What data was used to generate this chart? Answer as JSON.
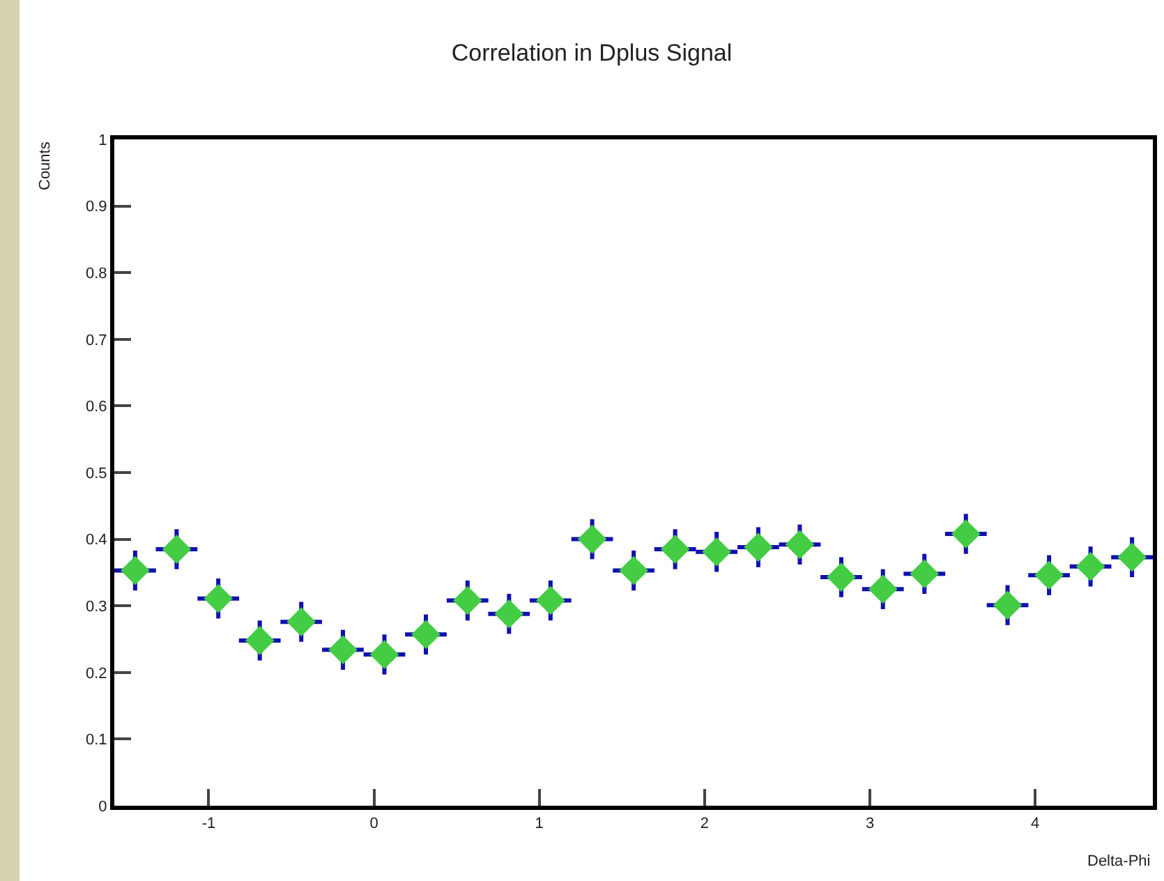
{
  "chart_data": {
    "type": "scatter",
    "title": "Correlation in Dplus Signal",
    "xlabel": "Delta-Phi",
    "ylabel": "Counts",
    "x": [
      -1.445,
      -1.194,
      -0.942,
      -0.691,
      -0.44,
      -0.188,
      0.063,
      0.314,
      0.566,
      0.817,
      1.068,
      1.32,
      1.571,
      1.822,
      2.073,
      2.325,
      2.576,
      2.827,
      3.079,
      3.33,
      3.581,
      3.833,
      4.084,
      4.335,
      4.586
    ],
    "series": [
      {
        "color": "#44cc44",
        "values": [
          0.353,
          0.385,
          0.311,
          0.248,
          0.276,
          0.234,
          0.227,
          0.257,
          0.308,
          0.288,
          0.308,
          0.4,
          0.353,
          0.385,
          0.381,
          0.388,
          0.392,
          0.343,
          0.325,
          0.348,
          0.408,
          0.301,
          0.346,
          0.359,
          0.373
        ],
        "errors": [
          0.03,
          0.03,
          0.03,
          0.03,
          0.03,
          0.03,
          0.03,
          0.03,
          0.03,
          0.03,
          0.03,
          0.03,
          0.03,
          0.03,
          0.03,
          0.03,
          0.03,
          0.03,
          0.03,
          0.03,
          0.03,
          0.03,
          0.03,
          0.03,
          0.03
        ],
        "xerrors": [
          0.126,
          0.126,
          0.126,
          0.126,
          0.126,
          0.126,
          0.126,
          0.126,
          0.126,
          0.126,
          0.126,
          0.126,
          0.126,
          0.126,
          0.126,
          0.126,
          0.126,
          0.126,
          0.126,
          0.126,
          0.126,
          0.126,
          0.126,
          0.126,
          0.126
        ]
      }
    ],
    "xlim": [
      -1.571,
      4.712
    ],
    "xticks": [
      -1,
      0,
      1,
      2,
      3,
      4
    ],
    "ylim": [
      0,
      1
    ],
    "yticks": [
      0,
      0.1,
      0.2,
      0.3,
      0.4,
      0.5,
      0.6,
      0.7,
      0.8,
      0.9,
      1
    ],
    "marker": "diamond",
    "grid": false
  }
}
